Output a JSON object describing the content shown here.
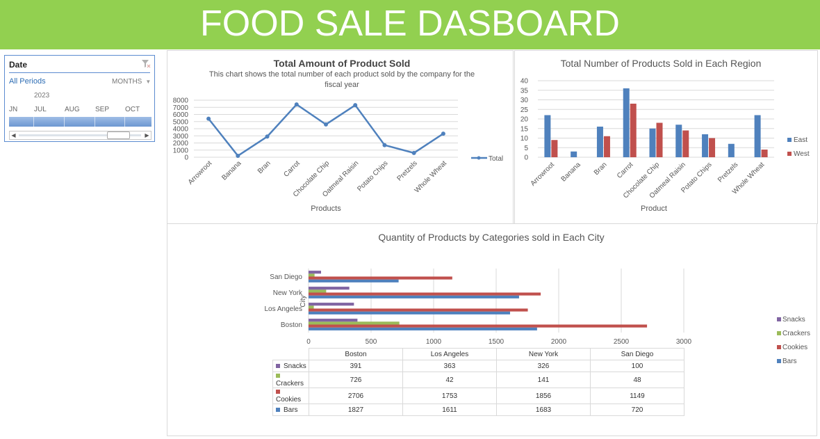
{
  "dashboard": {
    "title": "FOOD SALE DASBOARD"
  },
  "slicer": {
    "header": "Date",
    "all_periods": "All Periods",
    "level": "MONTHS",
    "year": "2023",
    "months": [
      "JN",
      "JUL",
      "AUG",
      "SEP",
      "OCT"
    ]
  },
  "colors": {
    "banner": "#92d050",
    "blue": "#4f81bd",
    "red": "#c0504d",
    "green": "#9bbb59",
    "purple": "#8064a2"
  },
  "chart_data": [
    {
      "type": "line",
      "title": "Total Amount of Product Sold",
      "subtitle": "This chart shows the total number of each product sold by the company for the fiscal year",
      "xlabel": "Products",
      "ylabel": "",
      "categories": [
        "Arrowroot",
        "Banana",
        "Bran",
        "Carrot",
        "Chocolate Chip",
        "Oatmeal Raisin",
        "Potato Chips",
        "Pretzels",
        "Whole Wheat"
      ],
      "series": [
        {
          "name": "Total",
          "values": [
            5400,
            200,
            2900,
            7400,
            4600,
            7300,
            1700,
            600,
            3300
          ]
        }
      ],
      "ylim": [
        0,
        8000
      ],
      "yticks": [
        0,
        1000,
        2000,
        3000,
        4000,
        5000,
        6000,
        7000,
        8000
      ],
      "legend": "right",
      "grid": true
    },
    {
      "type": "bar",
      "title": "Total Number of Products Sold in Each Region",
      "xlabel": "Product",
      "ylabel": "",
      "categories": [
        "Arrowroot",
        "Banana",
        "Bran",
        "Carrot",
        "Chocolate Chip",
        "Oatmeal Raisin",
        "Potato Chips",
        "Pretzels",
        "Whole Wheat"
      ],
      "series": [
        {
          "name": "East",
          "values": [
            22,
            3,
            16,
            36,
            15,
            17,
            12,
            7,
            22
          ]
        },
        {
          "name": "West",
          "values": [
            9,
            0,
            11,
            28,
            18,
            14,
            10,
            0,
            4
          ]
        }
      ],
      "ylim": [
        0,
        40
      ],
      "yticks": [
        0,
        5,
        10,
        15,
        20,
        25,
        30,
        35,
        40
      ],
      "legend": "right",
      "grid": true
    },
    {
      "type": "bar",
      "orientation": "horizontal",
      "title": "Quantity of Products by Categories sold in Each City",
      "ylabel": "City",
      "xlabel": "",
      "categories": [
        "Boston",
        "Los Angeles",
        "New York",
        "San Diego"
      ],
      "series": [
        {
          "name": "Bars",
          "values": [
            1827,
            1611,
            1683,
            720
          ]
        },
        {
          "name": "Cookies",
          "values": [
            2706,
            1753,
            1856,
            1149
          ]
        },
        {
          "name": "Crackers",
          "values": [
            726,
            42,
            141,
            48
          ]
        },
        {
          "name": "Snacks",
          "values": [
            391,
            363,
            326,
            100
          ]
        }
      ],
      "xlim": [
        0,
        3000
      ],
      "xticks": [
        0,
        500,
        1000,
        1500,
        2000,
        2500,
        3000
      ],
      "legend": "right",
      "grid": true,
      "data_table": true
    }
  ]
}
